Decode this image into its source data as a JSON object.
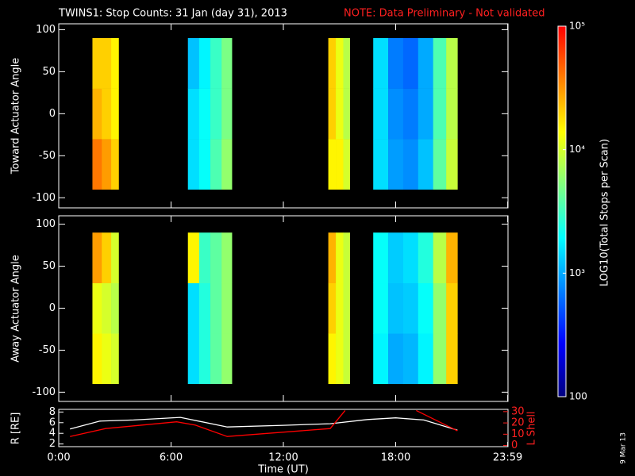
{
  "title": "TWINS1: Stop Counts: 31 Jan (day  31), 2013",
  "note": "NOTE: Data Preliminary - Not validated",
  "date_stamp": "9 Mar 13",
  "colorbar": {
    "label": "LOG10(Total Stops per Scan)",
    "log": true,
    "lim": [
      100,
      100000
    ],
    "ticks": [
      100,
      {
        "value": 1000,
        "label": "10³"
      },
      {
        "value": 10000,
        "label": "10⁴"
      },
      {
        "value": 100000,
        "label": "10⁵"
      }
    ],
    "colors": [
      "#000080",
      "#0000ff",
      "#0080ff",
      "#00ffff",
      "#80ff80",
      "#ffff00",
      "#ff8000",
      "#ff0000"
    ]
  },
  "chart_data": [
    {
      "type": "heatmap",
      "ylabel": "Toward Actuator Angle",
      "xlim": [
        0,
        24
      ],
      "ylim": [
        -112,
        107
      ],
      "yticks": [
        -100,
        -50,
        0,
        50,
        100
      ],
      "xbins": [
        1.8,
        2.3,
        2.8,
        3.2,
        6.9,
        7.5,
        8.1,
        8.7,
        9.25,
        14.4,
        14.8,
        15.2,
        15.55,
        16.8,
        17.6,
        18.4,
        19.2,
        20.0,
        20.7,
        21.3
      ],
      "ybins": [
        -90,
        -30,
        30,
        90
      ],
      "values": [
        [
          40000,
          30000,
          20000,
          null,
          1500,
          2000,
          3500,
          6000,
          null,
          15000,
          15000,
          10000,
          null,
          1500,
          900,
          800,
          1200,
          4000,
          9000
        ],
        [
          25000,
          20000,
          15000,
          null,
          1500,
          2000,
          3000,
          5000,
          null,
          20000,
          12000,
          8000,
          null,
          1500,
          800,
          700,
          1000,
          3500,
          8000
        ],
        [
          20000,
          20000,
          15000,
          null,
          1200,
          1800,
          3000,
          5000,
          null,
          20000,
          12000,
          8000,
          null,
          1500,
          700,
          600,
          1000,
          3500,
          8000
        ]
      ]
    },
    {
      "type": "heatmap",
      "ylabel": "Away Actuator Angle",
      "xlim": [
        0,
        24
      ],
      "ylim": [
        -111,
        110
      ],
      "yticks": [
        -100,
        -50,
        0,
        50,
        100
      ],
      "xbins": [
        1.8,
        2.3,
        2.8,
        3.2,
        6.9,
        7.5,
        8.1,
        8.7,
        9.25,
        14.4,
        14.8,
        15.2,
        15.55,
        16.8,
        17.6,
        18.4,
        19.2,
        20.0,
        20.7,
        21.3
      ],
      "ybins": [
        -90,
        -30,
        30,
        90
      ],
      "values": [
        [
          15000,
          12000,
          10000,
          null,
          1500,
          2500,
          4000,
          6000,
          null,
          15000,
          12000,
          9000,
          null,
          1800,
          1000,
          1100,
          1800,
          6000,
          20000
        ],
        [
          12000,
          10000,
          8000,
          null,
          1500,
          2500,
          4000,
          6000,
          null,
          20000,
          12000,
          9000,
          null,
          2000,
          1200,
          1300,
          2000,
          6000,
          20000
        ],
        [
          30000,
          20000,
          10000,
          null,
          15000,
          3000,
          4000,
          6000,
          null,
          25000,
          12000,
          9000,
          null,
          2000,
          1300,
          1500,
          2500,
          8000,
          25000
        ]
      ]
    },
    {
      "type": "line",
      "xlabel": "Time (UT)",
      "ylabel": "R [RE]",
      "y2label": "L Shell",
      "xlim": [
        0,
        24
      ],
      "xticks": [
        {
          "value": 0,
          "label": "0:00"
        },
        {
          "value": 6,
          "label": "6:00"
        },
        {
          "value": 12,
          "label": "12:00"
        },
        {
          "value": 18,
          "label": "18:00"
        },
        {
          "value": 23.983,
          "label": "23:59"
        }
      ],
      "ylim": [
        1.5,
        8.5
      ],
      "yticks": [
        2,
        4,
        6,
        8
      ],
      "y2lim": [
        -1,
        32
      ],
      "y2ticks": [
        0,
        10,
        20,
        30
      ],
      "series": [
        {
          "name": "R",
          "color": "#ffffff",
          "x": [
            0.6,
            2.2,
            4,
            6.5,
            9,
            12,
            14.5,
            16.5,
            18,
            19.5,
            21.3
          ],
          "values": [
            4.8,
            6.3,
            6.5,
            7,
            5.2,
            5.5,
            5.8,
            6.6,
            6.9,
            6.5,
            4.6
          ]
        },
        {
          "name": "L Shell",
          "color": "#ff0000",
          "axis": "y2",
          "x": [
            0.6,
            2.5,
            6.3,
            7.3,
            9,
            14.5,
            15.3,
            17,
            19.1,
            21.3
          ],
          "values": [
            8,
            15,
            21,
            18,
            8,
            15,
            31,
            null,
            31,
            13
          ]
        }
      ]
    }
  ]
}
